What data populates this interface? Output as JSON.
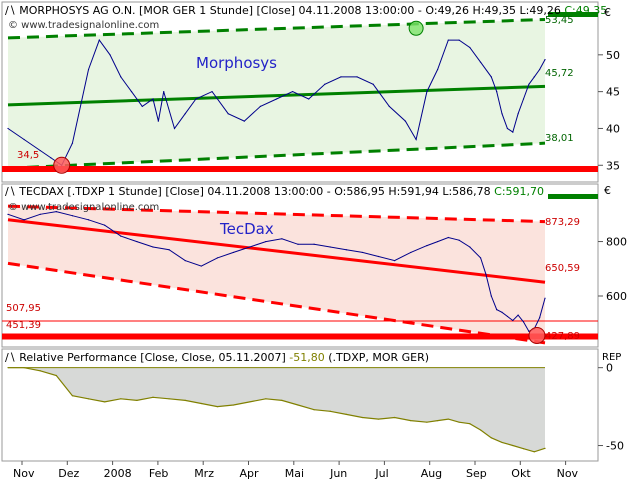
{
  "watermark": "© www.tradesignalonline.com",
  "colors": {
    "price": "#00008b",
    "green": "#008000",
    "green_fill": "#e8f5e2",
    "red": "#ff0000",
    "red_fill": "#fbe3dd",
    "rp_fill": "#d7d9d7",
    "rp_line": "#808000",
    "header_bg": "#ffffff"
  },
  "panels": {
    "top": {
      "header": {
        "prefix": "MORPHOSYS AG O.N. [MOR GER  1 Stunde] [Close] 04.11.2008 13:00:00 - O:49,26 H:49,35 L:49,26 ",
        "close": "C:49,35"
      },
      "currency": "€",
      "label": "Morphosys",
      "level_labels": [
        "53,45",
        "45,72",
        "38,01",
        "34,5"
      ]
    },
    "mid": {
      "header": {
        "prefix": "TECDAX [.TDXP  1 Stunde] [Close] 04.11.2008 13:00:00 - O:586,95 H:591,94 L:586,78 ",
        "close": "C:591,70"
      },
      "currency": "€",
      "label": "TecDax",
      "level_labels": [
        "873,29",
        "650,59",
        "427,89"
      ],
      "left_labels": [
        "507,95",
        "451,39"
      ]
    },
    "bottom": {
      "header": {
        "prefix": "Relative Performance [Close, Close, 05.11.2007] ",
        "value": "-51,80",
        "suffix": " (.TDXP, MOR GER)"
      },
      "currency": "REP"
    }
  },
  "chart_data": [
    {
      "type": "line",
      "title": "MORPHOSYS AG O.N. [MOR GER  1 Stunde] [Close]",
      "x_ticks": [
        "Nov",
        "Dez",
        "2008",
        "Feb",
        "Mrz",
        "Apr",
        "Mai",
        "Jun",
        "Jul",
        "Aug",
        "Sep",
        "Okt",
        "Nov"
      ],
      "ylim": [
        33,
        55
      ],
      "y_ticks": [
        35,
        40,
        45,
        50
      ],
      "series": [
        {
          "name": "Morphosys",
          "x": [
            0,
            3,
            6,
            8,
            10,
            12,
            15,
            17,
            19,
            21,
            23,
            25,
            27,
            28,
            29,
            31,
            33,
            35,
            38,
            41,
            44,
            47,
            50,
            53,
            56,
            59,
            62,
            65,
            68,
            71,
            74,
            76,
            78,
            80,
            82,
            84,
            86,
            88,
            90,
            91,
            92,
            93,
            94,
            95,
            96,
            97,
            98,
            99,
            100
          ],
          "y": [
            40,
            38.5,
            37,
            36,
            35,
            38,
            48,
            52,
            50,
            47,
            45,
            43,
            44,
            41,
            45,
            40,
            42,
            44,
            45,
            42,
            41,
            43,
            44,
            45,
            44,
            46,
            47,
            47,
            46,
            43,
            41,
            38.5,
            45,
            48,
            52,
            52,
            51,
            49,
            47,
            45,
            42,
            40,
            39.5,
            42,
            44,
            46,
            47,
            48,
            49.35
          ]
        }
      ],
      "annotations": [
        "53,45",
        "45,72",
        "38,01",
        "34,5",
        "Morphosys"
      ]
    },
    {
      "type": "line",
      "title": "TECDAX [.TDXP  1 Stunde] [Close]",
      "ylim": [
        420,
        960
      ],
      "y_ticks": [
        600,
        800
      ],
      "series": [
        {
          "name": "TecDax",
          "x": [
            0,
            3,
            6,
            9,
            12,
            15,
            18,
            21,
            24,
            27,
            30,
            33,
            36,
            39,
            42,
            45,
            48,
            51,
            54,
            57,
            60,
            63,
            66,
            69,
            72,
            75,
            78,
            80,
            82,
            84,
            86,
            88,
            89,
            90,
            91,
            92,
            93,
            94,
            95,
            96,
            97,
            98,
            99,
            100
          ],
          "y": [
            900,
            880,
            900,
            910,
            895,
            880,
            860,
            820,
            800,
            780,
            770,
            730,
            710,
            740,
            760,
            780,
            800,
            810,
            790,
            790,
            780,
            770,
            760,
            745,
            730,
            760,
            785,
            800,
            815,
            805,
            780,
            740,
            680,
            600,
            550,
            540,
            525,
            510,
            530,
            505,
            470,
            480,
            520,
            591.7
          ]
        }
      ],
      "annotations": [
        "873,29",
        "650,59",
        "427,89",
        "507,95",
        "451,39",
        "TecDax"
      ]
    },
    {
      "type": "area",
      "title": "Relative Performance [Close, Close, 05.11.2007]",
      "ylim": [
        -58,
        3
      ],
      "y_ticks": [
        0,
        -50
      ],
      "series": [
        {
          "x": [
            0,
            3,
            6,
            9,
            12,
            15,
            18,
            21,
            24,
            27,
            30,
            33,
            36,
            39,
            42,
            45,
            48,
            51,
            54,
            57,
            60,
            63,
            66,
            69,
            72,
            75,
            78,
            80,
            82,
            84,
            86,
            88,
            90,
            92,
            94,
            96,
            98,
            100
          ],
          "y": [
            0,
            0,
            -2,
            -5,
            -18,
            -20,
            -22,
            -20,
            -21,
            -19,
            -20,
            -21,
            -23,
            -25,
            -24,
            -22,
            -20,
            -21,
            -24,
            -27,
            -28,
            -30,
            -32,
            -33,
            -32,
            -34,
            -35,
            -34,
            -33,
            -35,
            -36,
            -40,
            -45,
            -48,
            -50,
            -52,
            -54,
            -51.8
          ]
        }
      ],
      "annotations": [
        "-51,80"
      ]
    }
  ]
}
